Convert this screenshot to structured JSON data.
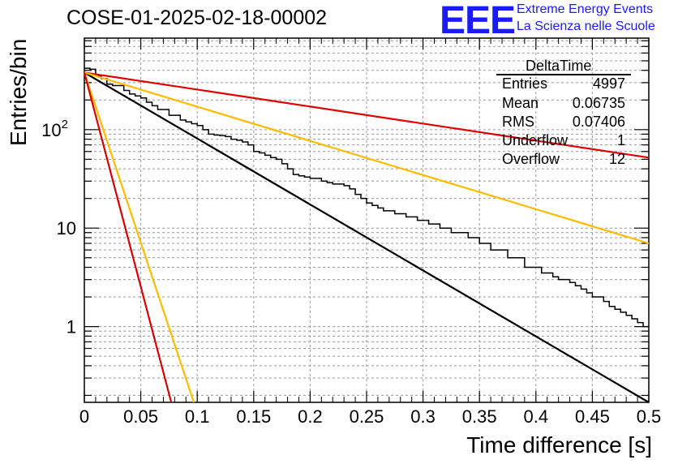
{
  "title": "COSE-01-2025-02-18-00002",
  "logo": {
    "text": "EEE",
    "line1": "Extreme Energy Events",
    "line2": "La Scienza nelle Scuole"
  },
  "stats_box": {
    "title": "DeltaTime",
    "rows": [
      {
        "label": "Entries",
        "value": "4997"
      },
      {
        "label": "Mean",
        "value": "0.06735"
      },
      {
        "label": "RMS",
        "value": "0.07406"
      },
      {
        "label": "Underflow",
        "value": "1"
      },
      {
        "label": "Overflow",
        "value": "12"
      }
    ]
  },
  "chart_data": {
    "type": "histogram",
    "title": "COSE-01-2025-02-18-00002",
    "xlabel": "Time difference [s]",
    "ylabel": "Entries/bin",
    "xlim": [
      0,
      0.5
    ],
    "ylim": [
      0.17,
      850
    ],
    "yscale": "log",
    "grid": true,
    "x_ticks": [
      "0",
      "0.05",
      "0.1",
      "0.15",
      "0.2",
      "0.25",
      "0.3",
      "0.35",
      "0.4",
      "0.45",
      "0.5"
    ],
    "y_ticks": [
      {
        "value": 1,
        "label": "1"
      },
      {
        "value": 10,
        "label": "10"
      },
      {
        "value": 100,
        "label": "10^2"
      }
    ],
    "bin_width": 0.005,
    "histogram_counts": [
      420,
      410,
      350,
      330,
      290,
      280,
      280,
      250,
      230,
      220,
      210,
      190,
      175,
      160,
      160,
      140,
      140,
      125,
      120,
      115,
      110,
      100,
      90,
      88,
      87,
      85,
      80,
      78,
      75,
      70,
      60,
      58,
      55,
      52,
      50,
      45,
      40,
      35,
      34,
      33,
      32,
      32,
      30,
      29,
      28,
      28,
      27,
      25,
      22,
      20,
      18,
      17,
      16,
      15,
      15,
      14,
      14,
      13,
      13,
      12,
      12,
      11,
      11,
      10,
      10,
      9,
      9,
      9,
      8,
      8,
      7,
      7,
      6,
      6,
      6,
      5,
      5,
      5,
      4,
      4,
      4,
      3.5,
      3.5,
      3.2,
      3,
      3,
      2.8,
      2.6,
      2.4,
      2.2,
      2,
      2,
      1.8,
      1.6,
      1.5,
      1.4,
      1.3,
      1.2,
      1.1,
      1
    ],
    "fit_lines": [
      {
        "color": "#000000",
        "x": [
          0,
          0.5
        ],
        "y": [
          380,
          0.17
        ]
      },
      {
        "color": "#dd0000",
        "x": [
          0,
          0.5
        ],
        "y": [
          380,
          52
        ]
      },
      {
        "color": "#ffbb00",
        "x": [
          0,
          0.5
        ],
        "y": [
          380,
          7
        ]
      },
      {
        "color": "#ffbb00",
        "x": [
          0,
          0.097
        ],
        "y": [
          380,
          0.17
        ]
      },
      {
        "color": "#dd0000",
        "x": [
          0,
          0.077
        ],
        "y": [
          380,
          0.17
        ]
      }
    ]
  }
}
